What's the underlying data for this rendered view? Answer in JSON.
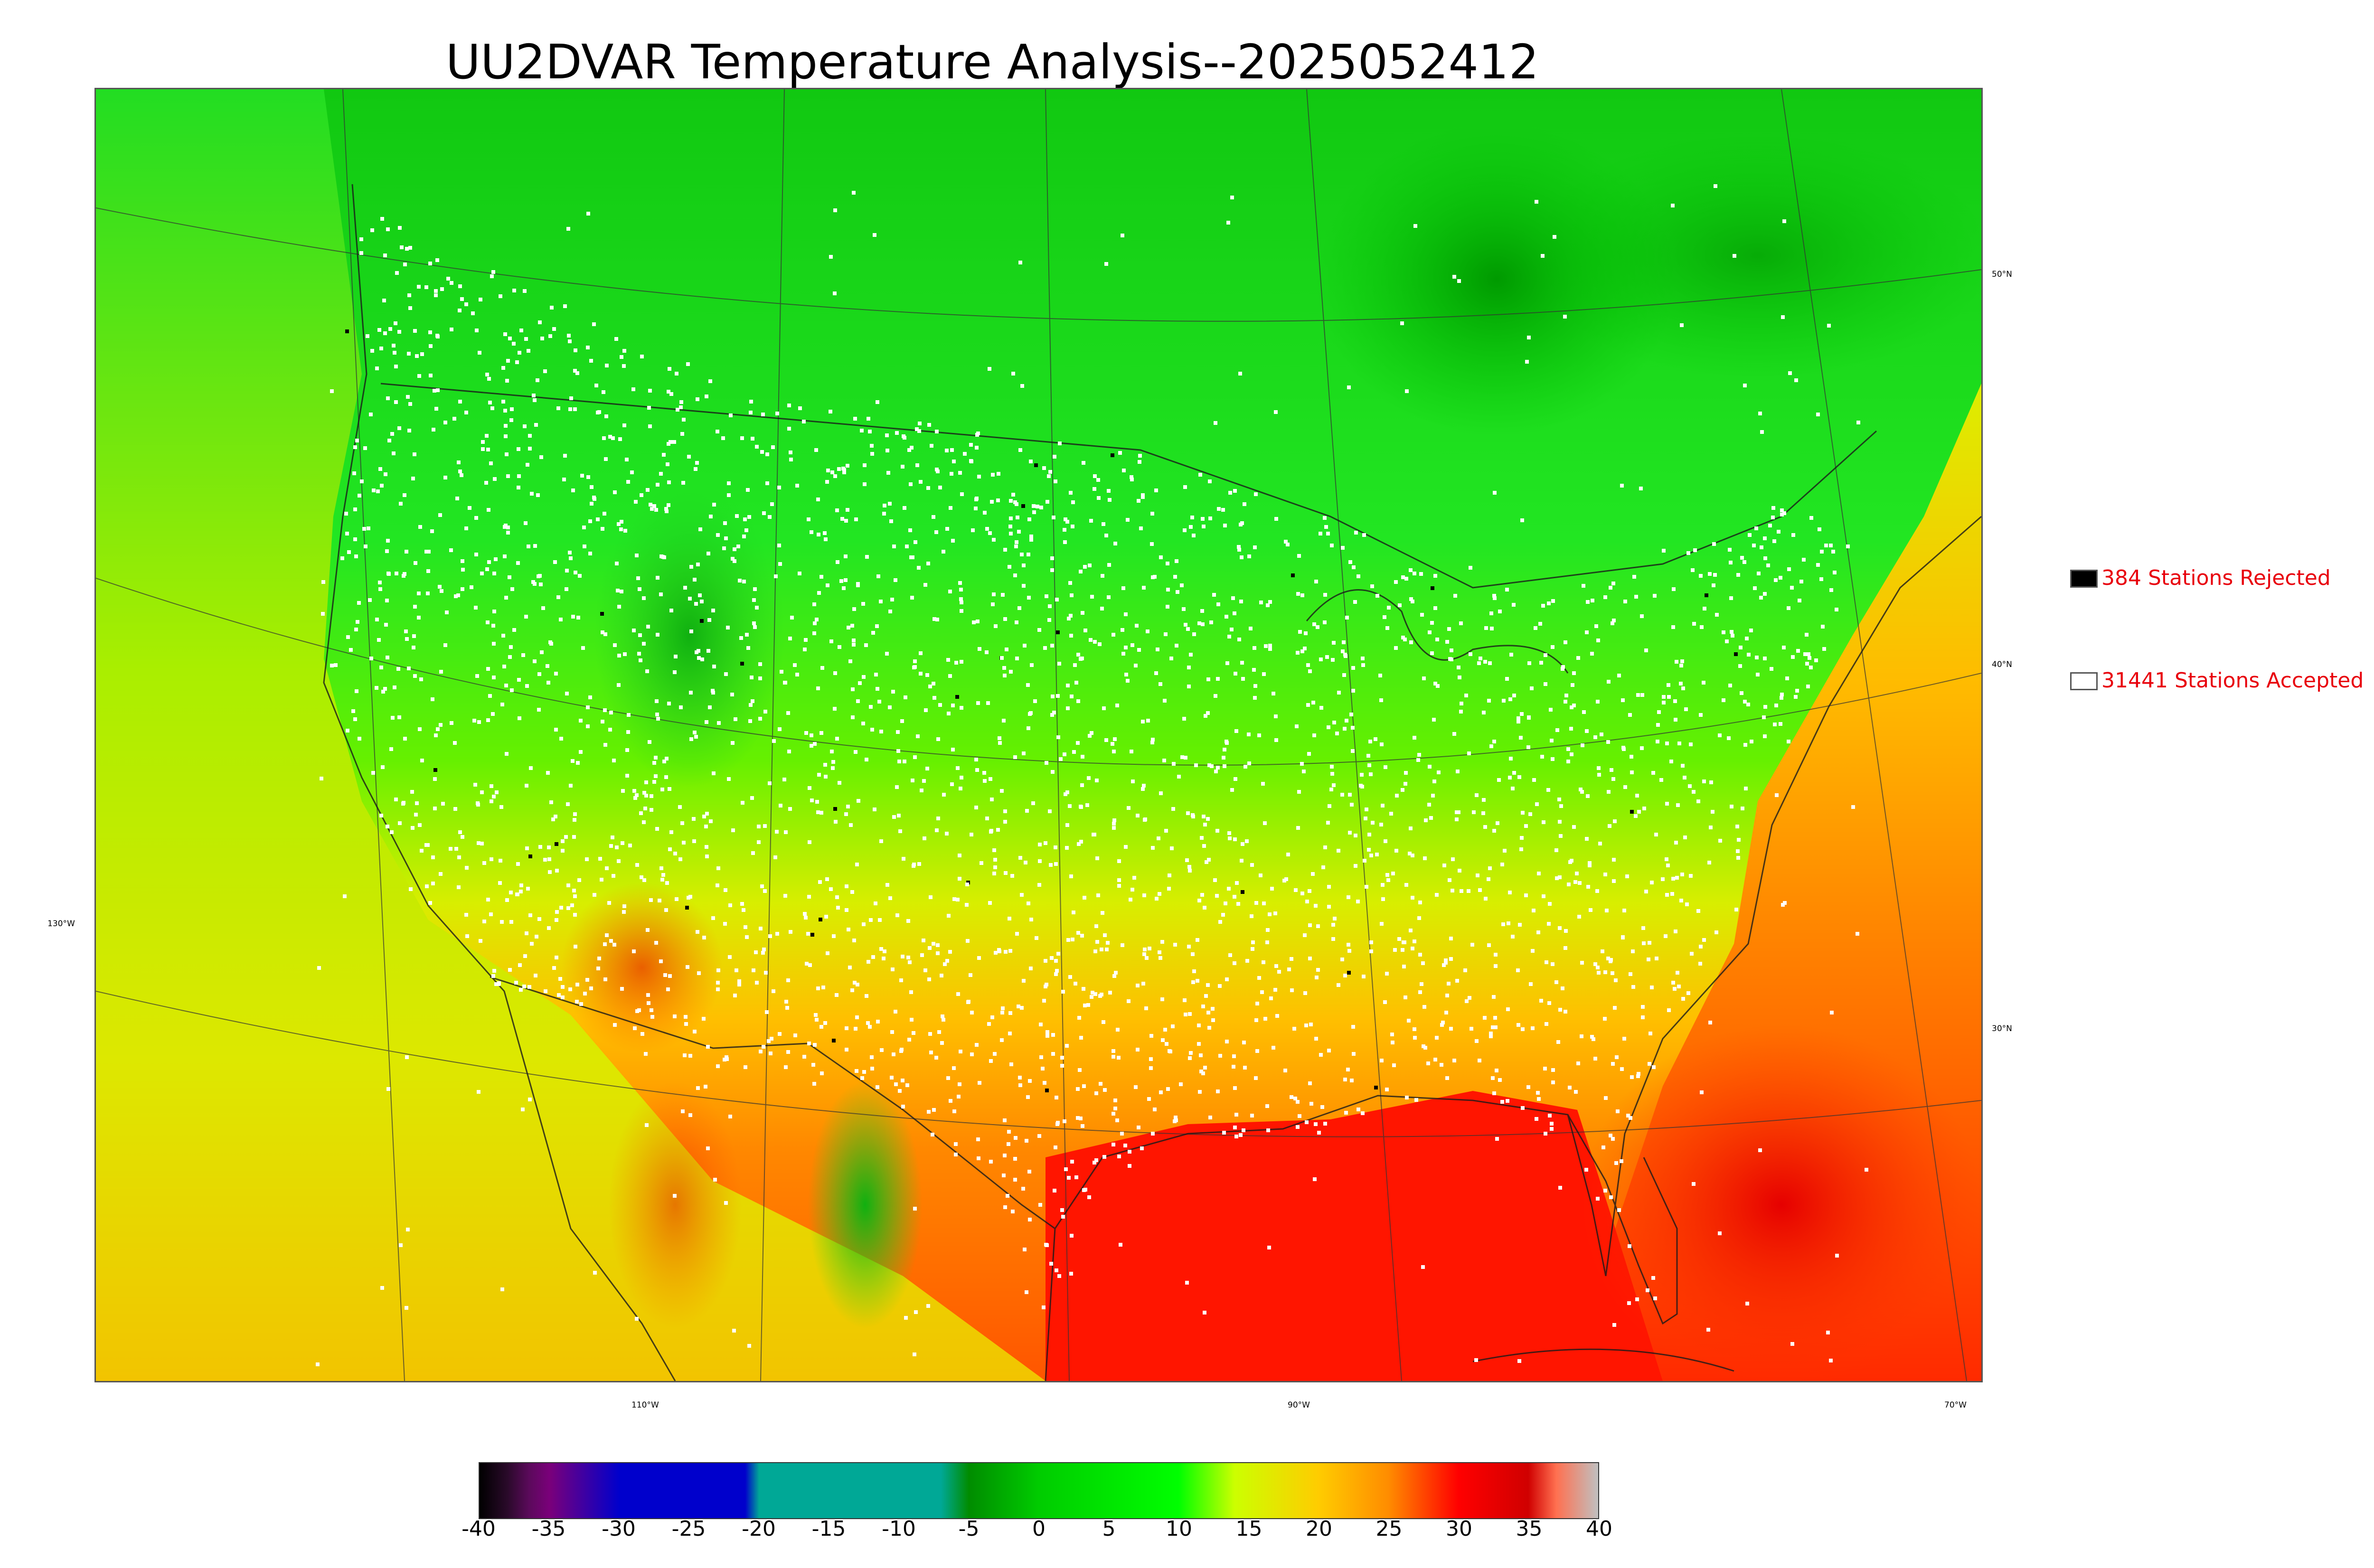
{
  "title": "UU2DVAR Temperature Analysis--2025052412",
  "map": {
    "graticule": {
      "lat_labels": [
        "50°N",
        "40°N",
        "30°N"
      ],
      "lon_labels": [
        "130°W",
        "110°W",
        "90°W",
        "70°W"
      ]
    },
    "stations": {
      "rejected": {
        "label": "384 Stations Rejected",
        "count": 384,
        "marker_color": "#000000"
      },
      "accepted": {
        "label": "31441 Stations Accepted",
        "count": 31441,
        "marker_color": "#ffffff"
      }
    }
  },
  "colorbar": {
    "ticks": [
      "-40",
      "-35",
      "-30",
      "-25",
      "-20",
      "-15",
      "-10",
      "-5",
      "0",
      "5",
      "10",
      "15",
      "20",
      "25",
      "30",
      "35",
      "40"
    ],
    "range": [
      -40,
      40
    ],
    "stops": [
      {
        "value": -40,
        "color": "#000000"
      },
      {
        "value": -38,
        "color": "#2a0a2a"
      },
      {
        "value": -36.5,
        "color": "#5a0a5a"
      },
      {
        "value": -35,
        "color": "#7a007a"
      },
      {
        "value": -30,
        "color": "#0000cc"
      },
      {
        "value": -21,
        "color": "#0000cc"
      },
      {
        "value": -20,
        "color": "#00a896"
      },
      {
        "value": -7,
        "color": "#00a896"
      },
      {
        "value": -5,
        "color": "#008c00"
      },
      {
        "value": 0,
        "color": "#00cc00"
      },
      {
        "value": 10,
        "color": "#00ff00"
      },
      {
        "value": 14,
        "color": "#ccff00"
      },
      {
        "value": 20,
        "color": "#ffcc00"
      },
      {
        "value": 25,
        "color": "#ff8c00"
      },
      {
        "value": 30,
        "color": "#ff0000"
      },
      {
        "value": 35,
        "color": "#d00000"
      },
      {
        "value": 37,
        "color": "#ff7050"
      },
      {
        "value": 40,
        "color": "#c0c0c0"
      }
    ]
  }
}
